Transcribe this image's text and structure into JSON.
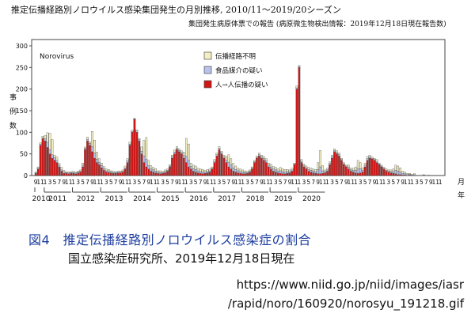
{
  "chart_data": {
    "type": "bar",
    "stacked": true,
    "title": "推定伝播経路別ノロウイルス感染集団発生の月別推移, 2010/11～2019/20シーズン",
    "subtitle": "集団発生病原体票での報告 (病原微生物検出情報：2019年12月18日現在報告数)",
    "inset_label": "Norovirus",
    "ylabel": "事例数",
    "xlabel_month": "月",
    "xlabel_year": "年",
    "ylim": [
      0,
      300
    ],
    "yticks": [
      0,
      50,
      100,
      150,
      200,
      250,
      300
    ],
    "grid": false,
    "legend_position": "top-center",
    "colors": {
      "unknown": "#f3efc4",
      "food": "#b9c2ec",
      "person": "#d01818"
    },
    "series": [
      {
        "name": "伝播経路不明",
        "values": [
          2,
          3,
          3,
          4,
          8,
          22,
          38,
          35,
          6,
          8,
          4,
          6,
          4,
          2,
          2,
          2,
          3,
          2,
          2,
          3,
          5,
          3,
          5,
          4,
          35,
          30,
          16,
          8,
          6,
          5,
          4,
          4,
          3,
          3,
          2,
          2,
          2,
          3,
          4,
          5,
          4,
          3,
          1,
          3,
          3,
          10,
          36,
          50,
          12,
          8,
          6,
          6,
          3,
          4,
          3,
          4,
          3,
          3,
          4,
          5,
          4,
          4,
          4,
          8,
          42,
          38,
          8,
          8,
          8,
          6,
          6,
          6,
          4,
          5,
          4,
          3,
          4,
          4,
          4,
          3,
          4,
          8,
          18,
          14,
          10,
          8,
          6,
          6,
          5,
          4,
          3,
          3,
          3,
          3,
          3,
          4,
          4,
          5,
          5,
          5,
          6,
          6,
          6,
          5,
          8,
          6,
          6,
          5,
          4,
          4,
          2,
          4,
          3,
          4,
          4,
          4,
          5,
          5,
          5,
          5,
          16,
          38,
          12,
          4,
          4,
          4,
          4,
          4,
          4,
          4,
          3,
          3,
          2,
          5,
          4,
          5,
          8,
          20,
          14,
          6,
          5,
          5,
          4,
          3,
          3,
          4,
          2,
          2,
          2,
          3,
          3,
          4,
          6,
          12,
          12,
          10,
          5,
          4,
          3,
          2,
          2,
          2,
          0,
          0,
          0,
          1,
          0,
          1,
          0,
          0,
          0,
          0,
          0
        ]
      },
      {
        "name": "食品媒介の疑い",
        "values": [
          1,
          2,
          3,
          2,
          5,
          12,
          10,
          8,
          6,
          5,
          4,
          3,
          3,
          2,
          2,
          2,
          2,
          2,
          2,
          2,
          4,
          3,
          4,
          4,
          12,
          12,
          8,
          6,
          5,
          4,
          3,
          3,
          2,
          2,
          2,
          2,
          2,
          2,
          3,
          4,
          3,
          2,
          1,
          3,
          3,
          6,
          15,
          18,
          8,
          5,
          5,
          4,
          3,
          3,
          2,
          3,
          2,
          2,
          3,
          4,
          3,
          3,
          3,
          6,
          14,
          15,
          6,
          6,
          6,
          5,
          4,
          4,
          3,
          3,
          3,
          2,
          3,
          3,
          3,
          3,
          3,
          6,
          10,
          10,
          8,
          6,
          5,
          4,
          4,
          3,
          2,
          2,
          2,
          2,
          2,
          3,
          3,
          4,
          4,
          4,
          5,
          5,
          5,
          4,
          6,
          5,
          4,
          4,
          3,
          3,
          2,
          3,
          2,
          3,
          3,
          3,
          4,
          4,
          4,
          4,
          10,
          16,
          6,
          3,
          3,
          3,
          3,
          3,
          3,
          3,
          2,
          2,
          2,
          4,
          3,
          4,
          6,
          10,
          10,
          4,
          4,
          4,
          3,
          2,
          2,
          3,
          2,
          2,
          2,
          2,
          2,
          3,
          4,
          8,
          8,
          6,
          4,
          3,
          2,
          2,
          1,
          2,
          0,
          0,
          0,
          1,
          0,
          0,
          0,
          0,
          0,
          0,
          0
        ]
      },
      {
        "name": "人→人伝播の疑い",
        "values": [
          5,
          15,
          70,
          85,
          80,
          65,
          50,
          40,
          35,
          30,
          20,
          10,
          5,
          5,
          4,
          5,
          5,
          4,
          6,
          8,
          20,
          60,
          80,
          70,
          55,
          40,
          30,
          25,
          18,
          12,
          8,
          7,
          6,
          5,
          5,
          6,
          6,
          8,
          15,
          30,
          70,
          100,
          130,
          100,
          80,
          50,
          30,
          20,
          15,
          10,
          8,
          6,
          5,
          4,
          5,
          6,
          10,
          20,
          40,
          50,
          60,
          55,
          50,
          40,
          30,
          20,
          15,
          10,
          8,
          6,
          5,
          4,
          5,
          6,
          8,
          15,
          30,
          45,
          60,
          50,
          40,
          30,
          20,
          15,
          10,
          8,
          6,
          5,
          4,
          4,
          5,
          8,
          15,
          30,
          40,
          45,
          40,
          35,
          30,
          20,
          15,
          10,
          8,
          6,
          5,
          4,
          4,
          5,
          6,
          10,
          25,
          200,
          250,
          30,
          20,
          15,
          10,
          8,
          6,
          5,
          4,
          4,
          5,
          6,
          10,
          25,
          40,
          55,
          50,
          45,
          35,
          25,
          20,
          15,
          10,
          8,
          6,
          5,
          6,
          8,
          20,
          35,
          40,
          38,
          35,
          30,
          25,
          20,
          15,
          10,
          8,
          6,
          5,
          4,
          2,
          2,
          1,
          1,
          0,
          1,
          0,
          0,
          0,
          0,
          0,
          0,
          0
        ]
      }
    ],
    "month_labels_repeat": [
      "9",
      "11",
      "1",
      "3",
      "5",
      "7"
    ],
    "years": [
      "2010",
      "2011",
      "2012",
      "2013",
      "2014",
      "2015",
      "2016",
      "2017",
      "2018",
      "2019",
      "2020"
    ]
  },
  "caption": {
    "title": "図4　推定伝播経路別ノロウイルス感染症の割合",
    "subtitle": "国立感染症研究所、2019年12月18日現在",
    "url_line1": "https://www.niid.go.jp/niid/images/iasr",
    "url_line2": "/rapid/noro/160920/norosyu_191218.gif"
  }
}
